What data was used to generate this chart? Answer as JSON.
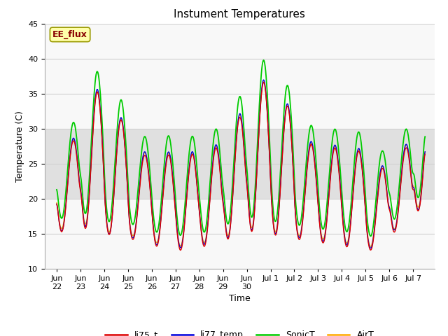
{
  "title": "Instument Temperatures",
  "xlabel": "Time",
  "ylabel": "Temperature (C)",
  "ylim": [
    10,
    45
  ],
  "tick_labels_x": [
    "Jun\n22",
    "Jun\n23",
    "Jun\n24",
    "Jun\n25",
    "Jun\n26",
    "Jun\n27",
    "Jun\n28",
    "Jun\n29",
    "Jun\n30",
    "Jul 1",
    "Jul 2",
    "Jul 3",
    "Jul 4",
    "Jul 5",
    "Jul 6",
    "Jul 7"
  ],
  "tick_positions": [
    1,
    2,
    3,
    4,
    5,
    6,
    7,
    8,
    9,
    10,
    11,
    12,
    13,
    14,
    15,
    16
  ],
  "first_label": "Jun",
  "shaded_band": [
    20,
    30
  ],
  "shaded_color": "#e0e0e0",
  "grid_color": "#d0d0d0",
  "line_colors": {
    "li75_t": "#dd0000",
    "li77_temp": "#0000dd",
    "SonicT": "#00cc00",
    "AirT": "#ffaa00"
  },
  "line_widths": {
    "li75_t": 1.0,
    "li77_temp": 1.0,
    "SonicT": 1.3,
    "AirT": 1.0
  },
  "annotation_text": "EE_flux",
  "annotation_facecolor": "#ffffaa",
  "annotation_edgecolor": "#999900",
  "annotation_fontcolor": "#880000",
  "background_color": "#f8f8f8",
  "title_fontsize": 11,
  "axis_label_fontsize": 9,
  "tick_fontsize": 8
}
